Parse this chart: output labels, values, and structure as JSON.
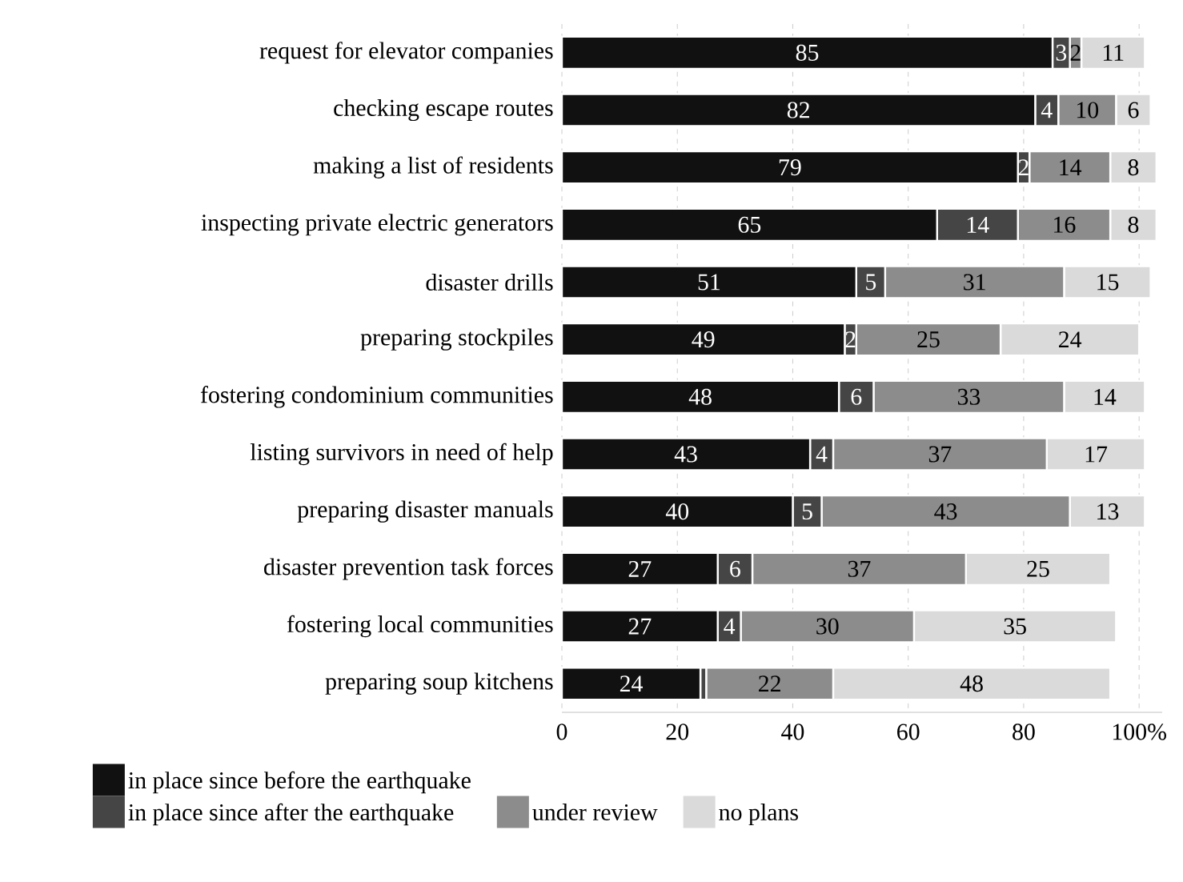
{
  "chart_data": {
    "type": "bar",
    "orientation": "horizontal",
    "stacked": true,
    "categories": [
      "request for elevator companies",
      "checking escape routes",
      "making a list of residents",
      "inspecting private electric generators",
      "disaster drills",
      "preparing stockpiles",
      "fostering condominium communities",
      "listing survivors in need of help",
      "preparing disaster manuals",
      "disaster prevention task forces",
      "fostering local communities",
      "preparing soup kitchens"
    ],
    "series": [
      {
        "name": "in place since before the earthquake",
        "color": "#111111",
        "values": [
          85,
          82,
          79,
          65,
          51,
          49,
          48,
          43,
          40,
          27,
          27,
          24
        ],
        "value_labels": [
          "85",
          "82",
          "79",
          "65",
          "51",
          "49",
          "48",
          "43",
          "40",
          "27",
          "27",
          "24"
        ]
      },
      {
        "name": "in place since after the earthquake",
        "color": "#454545",
        "values": [
          3,
          4,
          2,
          14,
          5,
          2,
          6,
          4,
          5,
          6,
          4,
          1
        ],
        "value_labels": [
          "3",
          "4",
          "2",
          "14",
          "5",
          "2",
          "6",
          "4",
          "5",
          "6",
          "4",
          null
        ]
      },
      {
        "name": "under review",
        "color": "#8c8c8c",
        "values": [
          2,
          10,
          14,
          16,
          31,
          25,
          33,
          37,
          43,
          37,
          30,
          22
        ],
        "value_labels": [
          "2",
          "10",
          "14",
          "16",
          "31",
          "25",
          "33",
          "37",
          "43",
          "37",
          "30",
          "22"
        ]
      },
      {
        "name": "no plans",
        "color": "#dadada",
        "values": [
          11,
          6,
          8,
          8,
          15,
          24,
          14,
          17,
          13,
          25,
          35,
          48
        ],
        "value_labels": [
          "11",
          "6",
          "8",
          "8",
          "15",
          "24",
          "14",
          "17",
          "13",
          "25",
          "35",
          "48"
        ]
      }
    ],
    "xlim": [
      0,
      104
    ],
    "xticks": [
      0,
      20,
      40,
      60,
      80,
      {
        "value": 100,
        "label": "100%"
      }
    ],
    "grid": "x",
    "legend": "bottom"
  }
}
